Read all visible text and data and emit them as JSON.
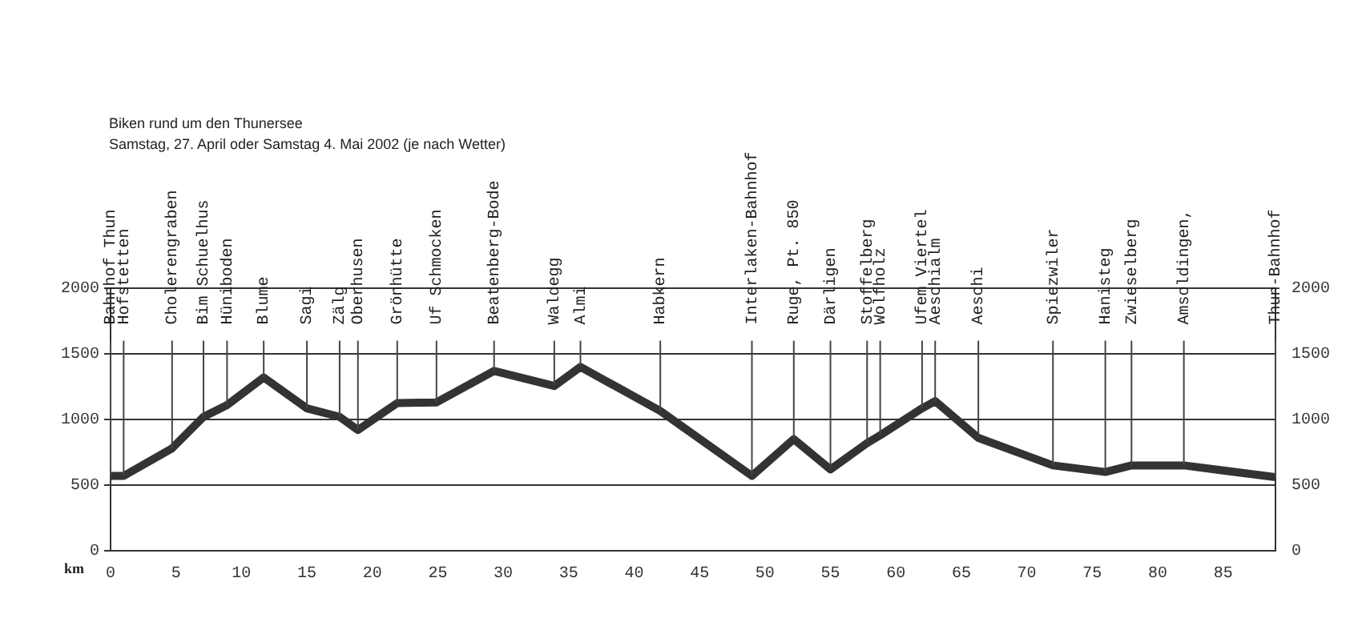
{
  "chart_data": {
    "type": "line",
    "title": "Biken rund um den Thunersee",
    "subtitle": "Samstag, 27. April oder Samstag 4. Mai 2002 (je nach Wetter)",
    "xlabel": "km",
    "series": [
      {
        "color": "#333333",
        "x": [
          0,
          1,
          4.7,
          7.1,
          8.9,
          11.7,
          15.0,
          17.5,
          18.9,
          21.9,
          24.9,
          29.3,
          33.9,
          35.9,
          42.0,
          49.0,
          52.2,
          55.0,
          57.8,
          58.8,
          62.0,
          63.0,
          66.3,
          72.0,
          76.0,
          78.0,
          82.0,
          89.0
        ],
        "values": [
          570,
          570,
          780,
          1020,
          1110,
          1320,
          1085,
          1020,
          920,
          1125,
          1130,
          1370,
          1255,
          1400,
          1065,
          570,
          850,
          620,
          820,
          880,
          1085,
          1140,
          860,
          650,
          600,
          650,
          650,
          560
        ]
      }
    ],
    "annotations": [
      {
        "text": "Bahnhof Thun",
        "x": 0,
        "y": 570
      },
      {
        "text": "Hofstetten",
        "x": 1,
        "y": 570
      },
      {
        "text": "Cholerengraben",
        "x": 4.7,
        "y": 780
      },
      {
        "text": "Bim Schuelhus",
        "x": 7.1,
        "y": 1020
      },
      {
        "text": "Hüniboden",
        "x": 8.9,
        "y": 1110
      },
      {
        "text": "Blume",
        "x": 11.7,
        "y": 1320
      },
      {
        "text": "Sagi",
        "x": 15.0,
        "y": 1085
      },
      {
        "text": "Zälg",
        "x": 17.5,
        "y": 1020
      },
      {
        "text": "Oberhusen",
        "x": 18.9,
        "y": 920
      },
      {
        "text": "Grönhütte",
        "x": 21.9,
        "y": 1125
      },
      {
        "text": "Uf Schmocken",
        "x": 24.9,
        "y": 1130
      },
      {
        "text": "Beatenberg-Bode",
        "x": 29.3,
        "y": 1370
      },
      {
        "text": "Waldegg",
        "x": 33.9,
        "y": 1255
      },
      {
        "text": "Almi",
        "x": 35.9,
        "y": 1400
      },
      {
        "text": "Habkern",
        "x": 42.0,
        "y": 1065
      },
      {
        "text": "Interlaken-Bahnhof",
        "x": 49.0,
        "y": 570
      },
      {
        "text": "Ruge, Pt. 850",
        "x": 52.2,
        "y": 850
      },
      {
        "text": "Därligen",
        "x": 55.0,
        "y": 620
      },
      {
        "text": "Stoffelberg",
        "x": 57.8,
        "y": 820
      },
      {
        "text": "Wolfholz",
        "x": 58.8,
        "y": 880
      },
      {
        "text": "Ufem Viertel",
        "x": 62.0,
        "y": 1085
      },
      {
        "text": "Aeschialm",
        "x": 63.0,
        "y": 1140
      },
      {
        "text": "Aeschi",
        "x": 66.3,
        "y": 860
      },
      {
        "text": "Spiezwiler",
        "x": 72.0,
        "y": 650
      },
      {
        "text": "Hanisteg",
        "x": 76.0,
        "y": 600
      },
      {
        "text": "Zwieselberg",
        "x": 78.0,
        "y": 650
      },
      {
        "text": "Amsoldingen,",
        "x": 82.0,
        "y": 650
      },
      {
        "text": "Thun-Bahnhof",
        "x": 89.0,
        "y": 560
      }
    ],
    "xlim": [
      0,
      89
    ],
    "xticks": [
      0,
      5,
      10,
      15,
      20,
      25,
      30,
      35,
      40,
      45,
      50,
      55,
      60,
      65,
      70,
      75,
      80,
      85
    ],
    "ylim": [
      0,
      2000
    ],
    "yticks": [
      0,
      500,
      1000,
      1500,
      2000
    ],
    "y2lim": [
      0,
      2000
    ],
    "y2ticks": [
      0,
      500,
      1000,
      1500,
      2000
    ],
    "grid": "y",
    "legend": false,
    "marker": "none",
    "line_style": "solid"
  }
}
